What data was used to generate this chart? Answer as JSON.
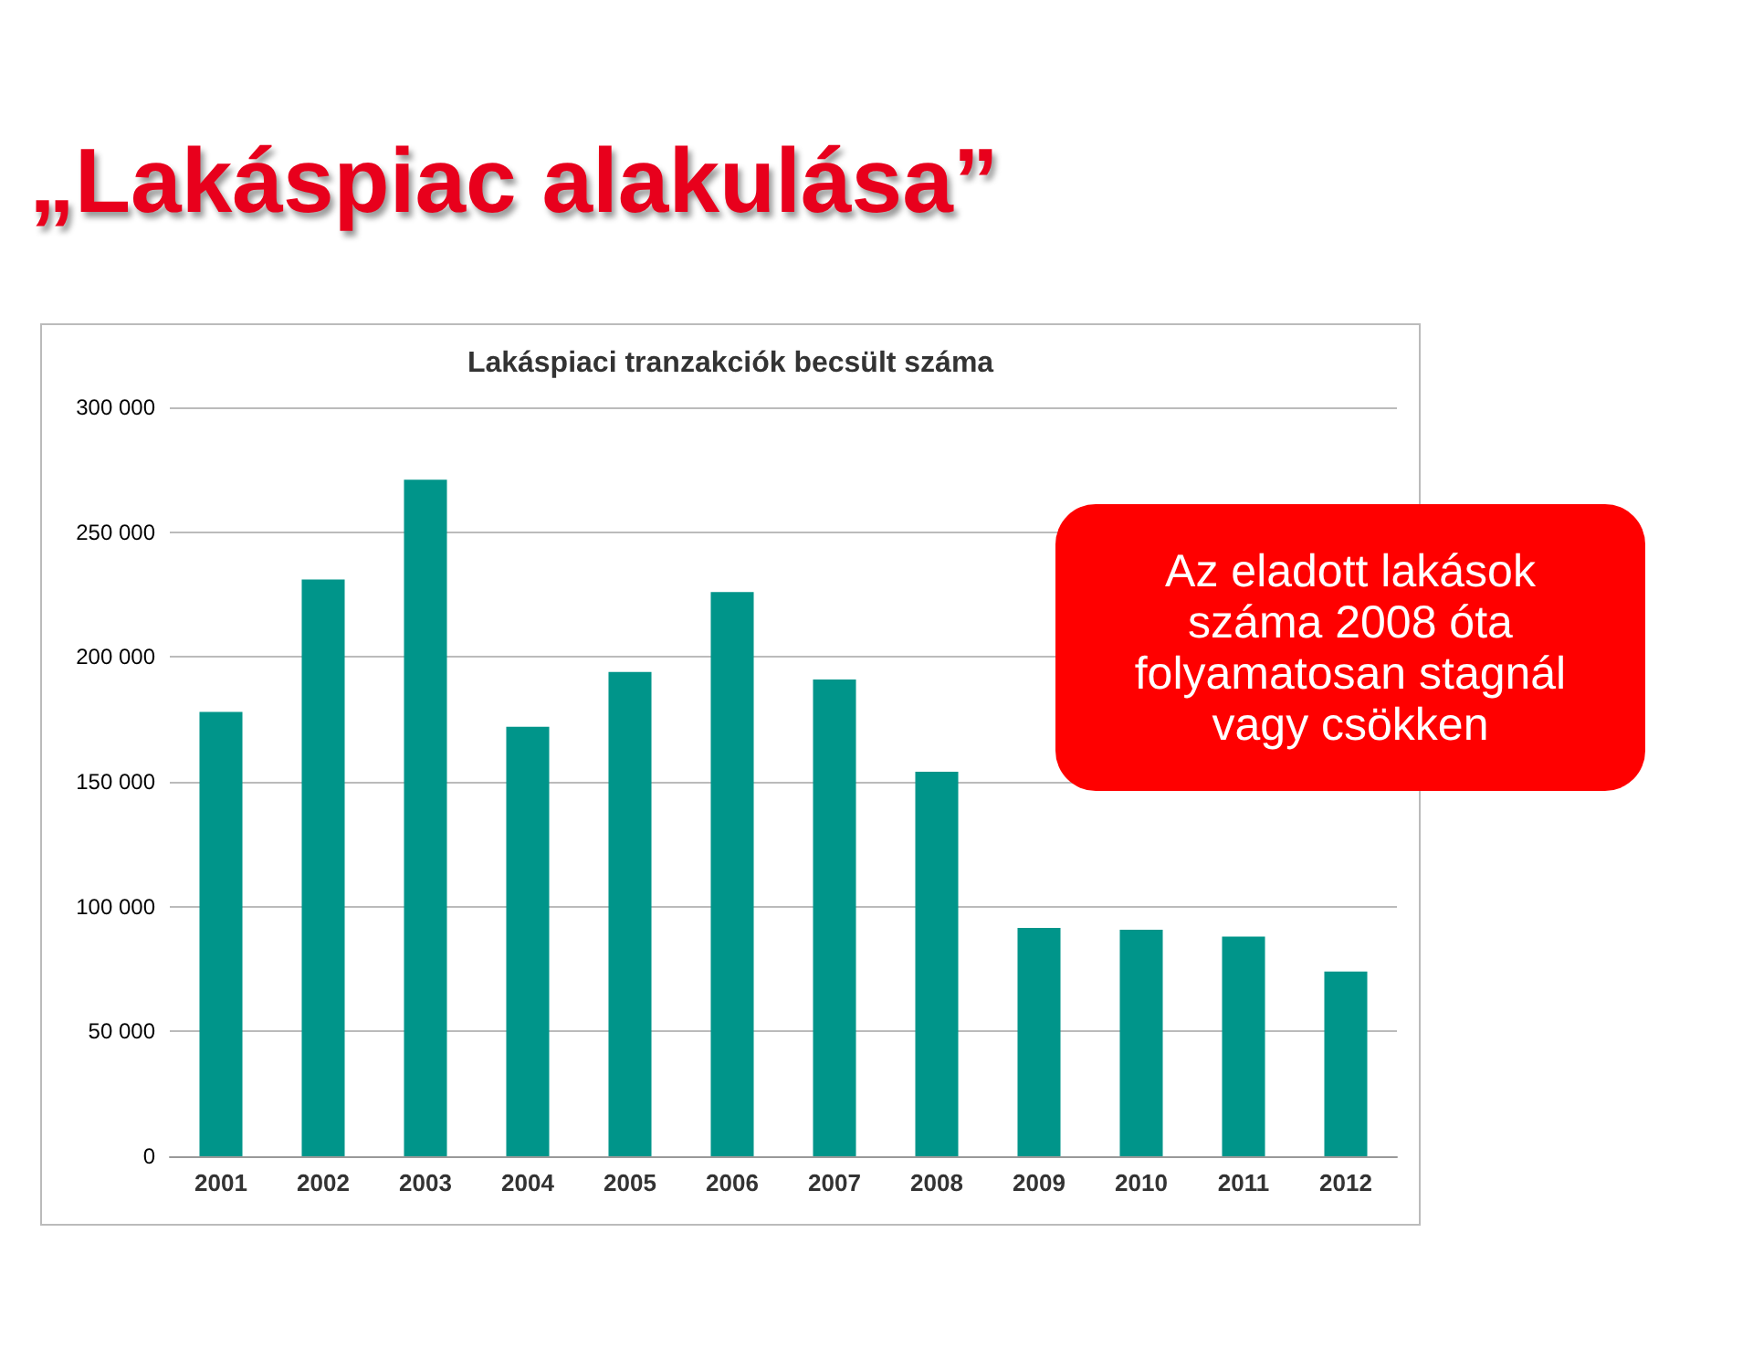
{
  "chart_data": {
    "type": "bar",
    "title": "„Lakáspiac alakulása”",
    "subtitle": "Lakáspiaci tranzakciók becsült száma",
    "categories": [
      "2001",
      "2002",
      "2003",
      "2004",
      "2005",
      "2006",
      "2007",
      "2008",
      "2009",
      "2010",
      "2011",
      "2012"
    ],
    "values": [
      178000,
      231000,
      271000,
      172000,
      194000,
      226000,
      191000,
      154000,
      91500,
      90700,
      88000,
      74000
    ],
    "color": "#00958a",
    "ylim": [
      0,
      300000
    ],
    "yticks": [
      {
        "value": 0,
        "label": "0"
      },
      {
        "value": 50000,
        "label": "50 000"
      },
      {
        "value": 100000,
        "label": "100 000"
      },
      {
        "value": 150000,
        "label": "150 000"
      },
      {
        "value": 200000,
        "label": "200 000"
      },
      {
        "value": 250000,
        "label": "250 000"
      },
      {
        "value": 300000,
        "label": "300 000"
      }
    ],
    "grid": "y",
    "annotations": [
      "Az eladott lakások száma 2008 óta folyamatosan stagnál vagy csökken"
    ]
  }
}
